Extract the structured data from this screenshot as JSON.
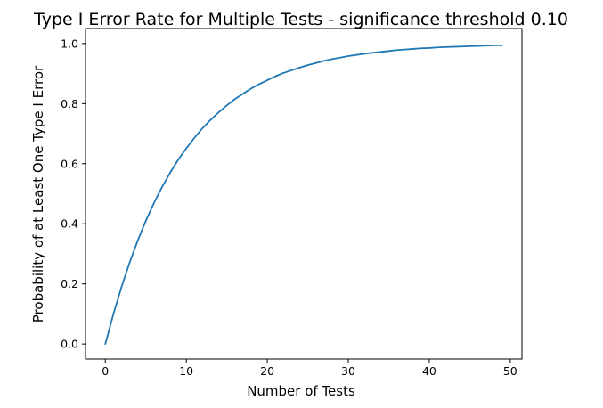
{
  "chart_data": {
    "type": "line",
    "title": "Type I Error Rate for Multiple Tests - significance threshold 0.10",
    "xlabel": "Number of Tests",
    "ylabel": "Probability of at Least One Type I Error",
    "xlim": [
      -2.45,
      51.45
    ],
    "ylim": [
      -0.05,
      1.05
    ],
    "xticks": [
      0,
      10,
      20,
      30,
      40,
      50
    ],
    "xtick_labels": [
      "0",
      "10",
      "20",
      "30",
      "40",
      "50"
    ],
    "yticks": [
      0.0,
      0.2,
      0.4,
      0.6,
      0.8,
      1.0
    ],
    "ytick_labels": [
      "0.0",
      "0.2",
      "0.4",
      "0.6",
      "0.8",
      "1.0"
    ],
    "grid": false,
    "legend": "none",
    "series": [
      {
        "color": "#1f77b4",
        "x": [
          0,
          1,
          2,
          3,
          4,
          5,
          6,
          7,
          8,
          9,
          10,
          11,
          12,
          13,
          14,
          15,
          16,
          17,
          18,
          19,
          20,
          21,
          22,
          23,
          24,
          25,
          26,
          27,
          28,
          29,
          30,
          31,
          32,
          33,
          34,
          35,
          36,
          37,
          38,
          39,
          40,
          41,
          42,
          43,
          44,
          45,
          46,
          47,
          48,
          49
        ],
        "y": [
          0.0,
          0.1,
          0.19,
          0.271,
          0.344,
          0.41,
          0.469,
          0.522,
          0.57,
          0.613,
          0.651,
          0.686,
          0.718,
          0.746,
          0.771,
          0.794,
          0.815,
          0.833,
          0.85,
          0.865,
          0.878,
          0.891,
          0.902,
          0.911,
          0.92,
          0.928,
          0.935,
          0.942,
          0.948,
          0.953,
          0.958,
          0.962,
          0.966,
          0.969,
          0.972,
          0.975,
          0.978,
          0.98,
          0.982,
          0.984,
          0.985,
          0.987,
          0.988,
          0.989,
          0.99,
          0.991,
          0.992,
          0.993,
          0.994,
          0.994
        ]
      }
    ]
  }
}
